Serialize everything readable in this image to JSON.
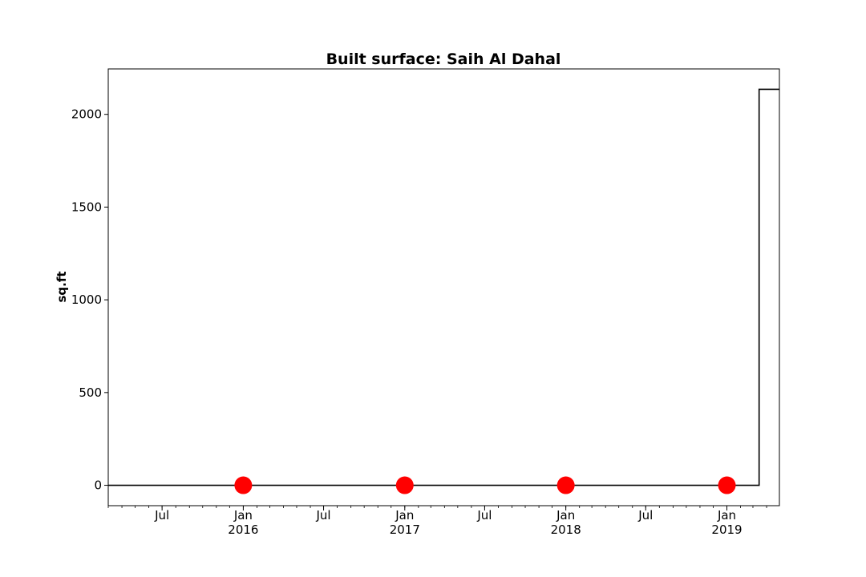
{
  "chart_data": {
    "type": "line",
    "title": "Built surface: Saih Al Dahal",
    "xlabel": "",
    "ylabel": "sq.ft",
    "xlim": [
      "2015-03-01",
      "2019-04-30"
    ],
    "ylim": [
      -110,
      2245
    ],
    "grid": false,
    "legend": "none",
    "line_color": "#000000",
    "marker_color": "#ff0000",
    "y_ticks": [
      {
        "value": 0,
        "label": "0"
      },
      {
        "value": 500,
        "label": "500"
      },
      {
        "value": 1000,
        "label": "1000"
      },
      {
        "value": 1500,
        "label": "1500"
      },
      {
        "value": 2000,
        "label": "2000"
      }
    ],
    "x_ticks": [
      {
        "date": "2015-07-01",
        "label": "Jul",
        "sublabel": ""
      },
      {
        "date": "2016-01-01",
        "label": "Jan",
        "sublabel": "2016"
      },
      {
        "date": "2016-07-01",
        "label": "Jul",
        "sublabel": ""
      },
      {
        "date": "2017-01-01",
        "label": "Jan",
        "sublabel": "2017"
      },
      {
        "date": "2017-07-01",
        "label": "Jul",
        "sublabel": ""
      },
      {
        "date": "2018-01-01",
        "label": "Jan",
        "sublabel": "2018"
      },
      {
        "date": "2018-07-01",
        "label": "Jul",
        "sublabel": ""
      },
      {
        "date": "2019-01-01",
        "label": "Jan",
        "sublabel": "2019"
      }
    ],
    "series": [
      {
        "type": "step",
        "points": [
          {
            "x": "2015-03-01",
            "y": 0
          },
          {
            "x": "2019-03-15",
            "y": 0
          },
          {
            "x": "2019-03-15",
            "y": 2135
          },
          {
            "x": "2019-04-30",
            "y": 2135
          }
        ]
      },
      {
        "type": "scatter",
        "points": [
          {
            "x": "2016-01-01",
            "y": 0
          },
          {
            "x": "2017-01-01",
            "y": 0
          },
          {
            "x": "2018-01-01",
            "y": 0
          },
          {
            "x": "2019-01-01",
            "y": 0
          }
        ]
      }
    ]
  }
}
